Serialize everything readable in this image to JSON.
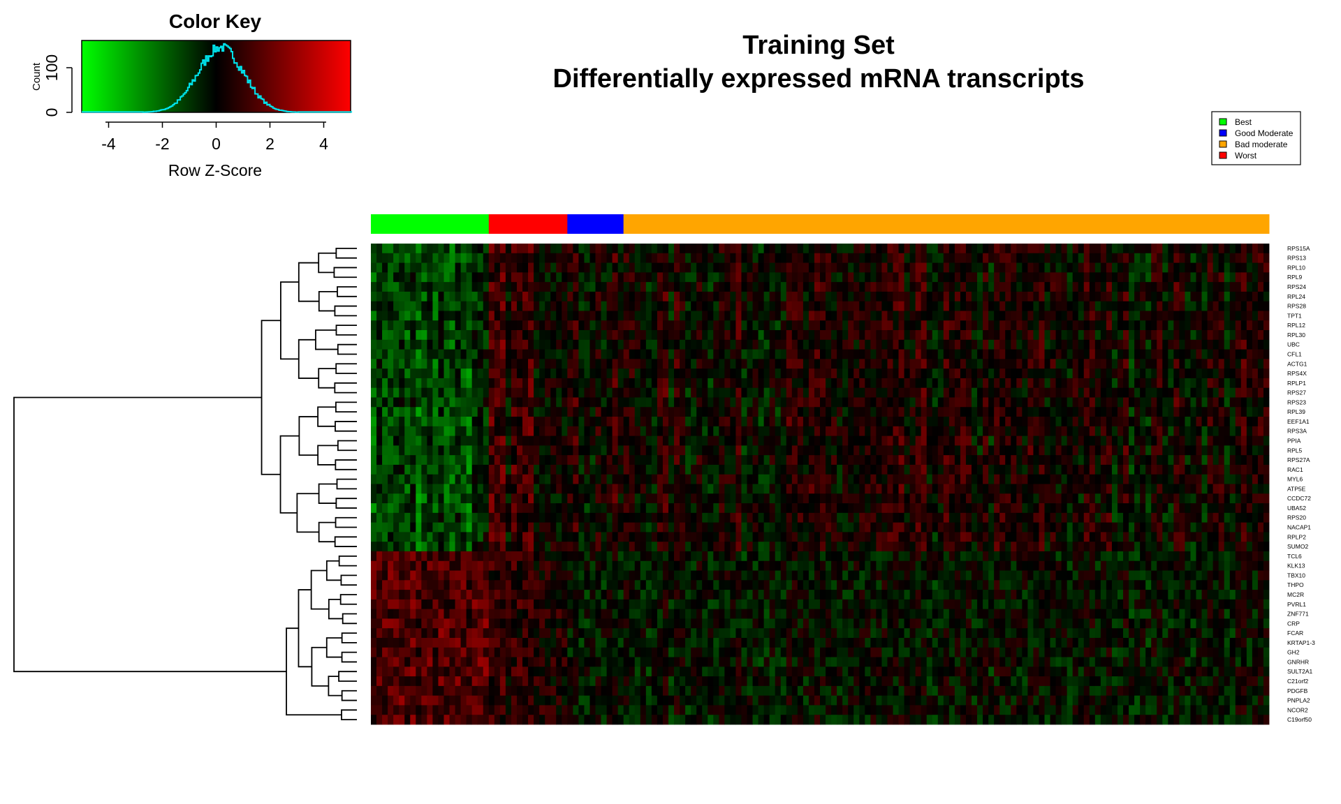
{
  "title_line1": "Training Set",
  "title_line2": "Differentially expressed mRNA transcripts",
  "color_key": {
    "title": "Color Key",
    "xlabel": "Row Z-Score",
    "ylabel": "Count",
    "x_ticks": [
      "-4",
      "-2",
      "0",
      "2",
      "4"
    ],
    "y_ticks": [
      "0",
      "100"
    ],
    "xlim": [
      -5,
      5
    ],
    "ylim": [
      0,
      160
    ],
    "gradient": [
      "#00ff00",
      "#000000",
      "#ff0000"
    ],
    "histogram_color": "#00e5ee"
  },
  "legend": {
    "items": [
      {
        "label": "Best",
        "color": "#00ff00"
      },
      {
        "label": "Good Moderate",
        "color": "#0000ff"
      },
      {
        "label": "Bad moderate",
        "color": "#ffa500"
      },
      {
        "label": "Worst",
        "color": "#ff0000"
      }
    ]
  },
  "chart_data": {
    "type": "heatmap",
    "title": "Training Set\nDifferentially expressed mRNA transcripts",
    "rows": [
      "RPS15A",
      "RPS13",
      "RPL10",
      "RPL9",
      "RPS24",
      "RPL24",
      "RPS28",
      "TPT1",
      "RPL12",
      "RPL30",
      "UBC",
      "CFL1",
      "ACTG1",
      "RPS4X",
      "RPLP1",
      "RPS27",
      "RPS23",
      "RPL39",
      "EEF1A1",
      "RPS3A",
      "PPIA",
      "RPL5",
      "RPS27A",
      "RAC1",
      "MYL6",
      "ATP5E",
      "CCDC72",
      "UBA52",
      "RPS20",
      "NACAP1",
      "RPLP2",
      "SUMO2",
      "TCL6",
      "KLK13",
      "TBX10",
      "THPO",
      "MC2R",
      "PVRL1",
      "ZNF771",
      "CRP",
      "FCAR",
      "KRTAP1-3",
      "GH2",
      "GNRHR",
      "SULT2A1",
      "C21orf2",
      "PDGFB",
      "PNPLA2",
      "NCOR2",
      "C19orf50"
    ],
    "column_groups": [
      {
        "group": "Best",
        "color": "#00ff00",
        "n_columns": 21
      },
      {
        "group": "Worst",
        "color": "#ff0000",
        "n_columns": 14
      },
      {
        "group": "Good Moderate",
        "color": "#0000ff",
        "n_columns": 10
      },
      {
        "group": "Bad moderate",
        "color": "#ffa500",
        "n_columns": 115
      }
    ],
    "row_clusters": [
      {
        "cluster": 1,
        "rows": "RPS15A–SUMO2",
        "count": 32
      },
      {
        "cluster": 2,
        "rows": "TCL6–C19orf50",
        "count": 18
      }
    ],
    "value_scale": "Row Z-Score",
    "color_scale": [
      "#00ff00",
      "#000000",
      "#ff0000"
    ]
  }
}
